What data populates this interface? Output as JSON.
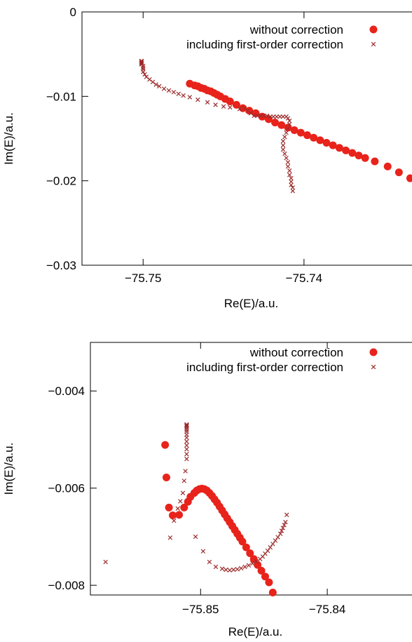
{
  "chart_data": [
    {
      "type": "scatter",
      "xlabel": "Re(E)/a.u.",
      "ylabel": "Im(E)/a.u.",
      "xlim": [
        -75.7538,
        -75.7332
      ],
      "ylim": [
        -0.03,
        0.0
      ],
      "xticks": [
        "-75.75",
        "-75.74"
      ],
      "xtick_values": [
        -75.75,
        -75.74
      ],
      "yticks": [
        "0",
        "-0.01",
        "-0.02",
        "-0.03"
      ],
      "ytick_values": [
        0.0,
        -0.01,
        -0.02,
        -0.03
      ],
      "grid": false,
      "legend": "top-right",
      "series": [
        {
          "name": "without correction",
          "marker": "circle",
          "color": "#e8231b",
          "x": [
            -75.7471,
            -75.7468,
            -75.7466,
            -75.7464,
            -75.7462,
            -75.746,
            -75.7458,
            -75.7456,
            -75.7454,
            -75.7452,
            -75.7449,
            -75.7446,
            -75.7442,
            -75.7438,
            -75.7434,
            -75.743,
            -75.7426,
            -75.7422,
            -75.7418,
            -75.7414,
            -75.741,
            -75.7406,
            -75.7402,
            -75.7398,
            -75.7394,
            -75.739,
            -75.7386,
            -75.7382,
            -75.7378,
            -75.7374,
            -75.737,
            -75.7366,
            -75.7362,
            -75.7356,
            -75.7348,
            -75.7341,
            -75.7334
          ],
          "y": [
            -0.0085,
            -0.0087,
            -0.0088,
            -0.009,
            -0.0091,
            -0.0093,
            -0.0094,
            -0.0096,
            -0.0098,
            -0.01,
            -0.0103,
            -0.0106,
            -0.011,
            -0.0114,
            -0.0117,
            -0.012,
            -0.0124,
            -0.0127,
            -0.0131,
            -0.0134,
            -0.0137,
            -0.014,
            -0.0143,
            -0.0146,
            -0.0149,
            -0.0152,
            -0.0155,
            -0.0158,
            -0.0161,
            -0.0164,
            -0.0167,
            -0.017,
            -0.0173,
            -0.0177,
            -0.0183,
            -0.019,
            -0.0197
          ]
        },
        {
          "name": "including first-order correction",
          "marker": "x",
          "color": "#9c2b2b",
          "x": [
            -75.7501,
            -75.7501,
            -75.7501,
            -75.7501,
            -75.7501,
            -75.75,
            -75.75,
            -75.75,
            -75.75,
            -75.7499,
            -75.7498,
            -75.7496,
            -75.7494,
            -75.7492,
            -75.749,
            -75.7487,
            -75.7484,
            -75.7481,
            -75.7478,
            -75.7475,
            -75.7471,
            -75.7466,
            -75.746,
            -75.7455,
            -75.745,
            -75.7446,
            -75.744,
            -75.7437,
            -75.7435,
            -75.7433,
            -75.7431,
            -75.7429,
            -75.7427,
            -75.7425,
            -75.7423,
            -75.7421,
            -75.7419,
            -75.7417,
            -75.7415,
            -75.7413,
            -75.7411,
            -75.741,
            -75.7409,
            -75.7409,
            -75.741,
            -75.7411,
            -75.7412,
            -75.7413,
            -75.7413,
            -75.7413,
            -75.7412,
            -75.7411,
            -75.741,
            -75.741,
            -75.7409,
            -75.7409,
            -75.7408,
            -75.7408,
            -75.7408,
            -75.7407,
            -75.7407
          ],
          "y": [
            -0.0058,
            -0.0059,
            -0.006,
            -0.0061,
            -0.0062,
            -0.0064,
            -0.0066,
            -0.0068,
            -0.0071,
            -0.0074,
            -0.0077,
            -0.008,
            -0.0083,
            -0.0086,
            -0.0088,
            -0.0091,
            -0.0093,
            -0.0095,
            -0.0097,
            -0.0099,
            -0.0101,
            -0.0104,
            -0.0107,
            -0.011,
            -0.0112,
            -0.0113,
            -0.0115,
            -0.0114,
            -0.0117,
            -0.012,
            -0.0123,
            -0.0123,
            -0.0123,
            -0.0123,
            -0.0123,
            -0.0124,
            -0.0124,
            -0.0124,
            -0.0124,
            -0.0124,
            -0.0124,
            -0.0126,
            -0.0129,
            -0.0133,
            -0.0138,
            -0.0143,
            -0.0148,
            -0.0153,
            -0.0158,
            -0.0163,
            -0.0168,
            -0.0173,
            -0.0178,
            -0.0183,
            -0.0188,
            -0.0193,
            -0.0197,
            -0.0201,
            -0.0205,
            -0.0208,
            -0.0212
          ]
        }
      ]
    },
    {
      "type": "scatter",
      "xlabel": "Re(E)/a.u.",
      "ylabel": "Im(E)/a.u.",
      "xlim": [
        -75.8587,
        -75.8332
      ],
      "ylim": [
        -0.0082,
        -0.003
      ],
      "xticks": [
        "-75.85",
        "-75.84"
      ],
      "xtick_values": [
        -75.85,
        -75.84
      ],
      "yticks": [
        "-0.004",
        "-0.006",
        "-0.008"
      ],
      "ytick_values": [
        -0.004,
        -0.006,
        -0.008
      ],
      "grid": false,
      "legend": "top-right",
      "series": [
        {
          "name": "without correction",
          "marker": "circle",
          "color": "#e8231b",
          "x": [
            -75.8528,
            -75.8527,
            -75.8525,
            -75.8522,
            -75.8517,
            -75.8513,
            -75.851,
            -75.8508,
            -75.8505,
            -75.8503,
            -75.8501,
            -75.8499,
            -75.8497,
            -75.8495,
            -75.8493,
            -75.8491,
            -75.8489,
            -75.8487,
            -75.8485,
            -75.8483,
            -75.8481,
            -75.8479,
            -75.8477,
            -75.8475,
            -75.8473,
            -75.8471,
            -75.8469,
            -75.8467,
            -75.8464,
            -75.8461,
            -75.8458,
            -75.8455,
            -75.8452,
            -75.8449,
            -75.8446,
            -75.8443
          ],
          "y": [
            -0.00511,
            -0.00578,
            -0.0064,
            -0.00656,
            -0.00655,
            -0.0064,
            -0.00628,
            -0.00618,
            -0.0061,
            -0.00605,
            -0.00602,
            -0.00601,
            -0.00602,
            -0.00605,
            -0.0061,
            -0.00616,
            -0.00623,
            -0.0063,
            -0.00638,
            -0.00646,
            -0.00654,
            -0.00662,
            -0.0067,
            -0.00678,
            -0.00686,
            -0.00694,
            -0.00702,
            -0.0071,
            -0.00722,
            -0.00734,
            -0.00746,
            -0.00758,
            -0.0077,
            -0.00782,
            -0.00794,
            -0.00815
          ]
        },
        {
          "name": "including first-order correction",
          "marker": "x",
          "color": "#9c2b2b",
          "x": [
            -75.8575,
            -75.8524,
            -75.8521,
            -75.8518,
            -75.8516,
            -75.8514,
            -75.8513,
            -75.8512,
            -75.8511,
            -75.8511,
            -75.8511,
            -75.8511,
            -75.8511,
            -75.8511,
            -75.8511,
            -75.8511,
            -75.8511,
            -75.8511,
            -75.8511,
            -75.8511,
            -75.8511,
            -75.8511,
            -75.8504,
            -75.8498,
            -75.8493,
            -75.8488,
            -75.8483,
            -75.848,
            -75.8477,
            -75.8474,
            -75.8471,
            -75.8468,
            -75.8465,
            -75.8462,
            -75.8459,
            -75.8456,
            -75.8453,
            -75.8451,
            -75.8449,
            -75.8447,
            -75.8445,
            -75.8443,
            -75.8441,
            -75.8439,
            -75.8437,
            -75.8436,
            -75.8435,
            -75.8434,
            -75.8433,
            -75.8432
          ],
          "y": [
            -0.00752,
            -0.00702,
            -0.00667,
            -0.00642,
            -0.00627,
            -0.0061,
            -0.00585,
            -0.00565,
            -0.0054,
            -0.0053,
            -0.0052,
            -0.00512,
            -0.00504,
            -0.00496,
            -0.0049,
            -0.00484,
            -0.0048,
            -0.00476,
            -0.00473,
            -0.00471,
            -0.0047,
            -0.00469,
            -0.007,
            -0.0073,
            -0.00752,
            -0.00762,
            -0.00766,
            -0.00768,
            -0.00769,
            -0.00768,
            -0.00767,
            -0.00765,
            -0.00762,
            -0.00759,
            -0.00755,
            -0.00751,
            -0.00746,
            -0.00741,
            -0.00735,
            -0.00729,
            -0.00722,
            -0.00715,
            -0.00708,
            -0.00701,
            -0.00694,
            -0.00688,
            -0.00682,
            -0.00676,
            -0.0067,
            -0.00655
          ]
        }
      ]
    }
  ]
}
